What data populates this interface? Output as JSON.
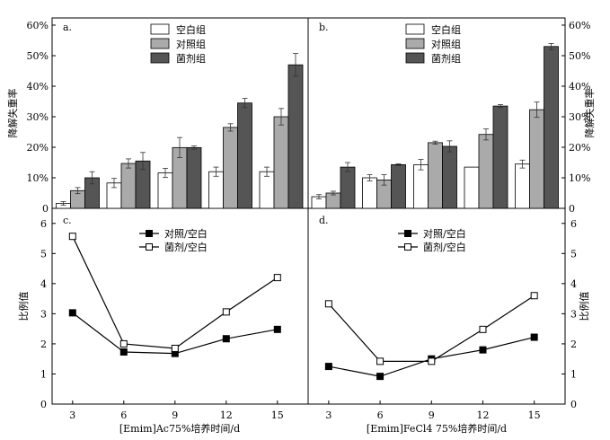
{
  "chart_data": [
    {
      "panel": "a",
      "type": "bar",
      "label": "a.",
      "categories": [
        "3",
        "6",
        "9",
        "12",
        "15"
      ],
      "series": [
        {
          "name": "空白组",
          "values": [
            1.6,
            8.3,
            11.6,
            12.0,
            12.0
          ],
          "errors": [
            0.6,
            1.5,
            1.5,
            1.5,
            1.5
          ],
          "color": "#ffffff"
        },
        {
          "name": "对照组",
          "values": [
            5.8,
            14.7,
            19.9,
            26.5,
            30.0
          ],
          "errors": [
            1.0,
            1.5,
            3.3,
            1.2,
            2.7
          ],
          "color": "#aaaaaa"
        },
        {
          "name": "菌剂组",
          "values": [
            10.0,
            15.5,
            19.9,
            34.5,
            47.0
          ],
          "errors": [
            2.0,
            2.8,
            0.5,
            1.5,
            3.7
          ],
          "color": "#555555"
        }
      ],
      "ylabel": "降解失重率",
      "yticks": [
        "0",
        "10%",
        "20%",
        "30%",
        "40%",
        "50%",
        "60%"
      ],
      "ylim": [
        0,
        60
      ]
    },
    {
      "panel": "b",
      "type": "bar",
      "label": "b.",
      "categories": [
        "3",
        "6",
        "9",
        "12",
        "15"
      ],
      "series": [
        {
          "name": "空白组",
          "values": [
            3.8,
            10.0,
            14.3,
            13.5,
            14.5
          ],
          "errors": [
            0.7,
            1.0,
            1.7,
            0,
            1.3
          ],
          "color": "#ffffff"
        },
        {
          "name": "对照组",
          "values": [
            5.0,
            9.3,
            21.5,
            24.2,
            32.3
          ],
          "errors": [
            0.6,
            1.7,
            0.5,
            1.8,
            2.5
          ],
          "color": "#aaaaaa"
        },
        {
          "name": "菌剂组",
          "values": [
            13.5,
            14.3,
            20.3,
            33.5,
            53.0
          ],
          "errors": [
            1.5,
            0.3,
            1.8,
            0.5,
            1.0
          ],
          "color": "#555555"
        }
      ],
      "ylabel": "降解失重率",
      "yticks": [
        "0",
        "10%",
        "20%",
        "30%",
        "40%",
        "50%",
        "60%"
      ],
      "ylim": [
        0,
        60
      ]
    },
    {
      "panel": "c",
      "type": "line",
      "label": "c.",
      "x": [
        3,
        6,
        9,
        12,
        15
      ],
      "xticks": [
        "3",
        "6",
        "9",
        "12",
        "15"
      ],
      "series": [
        {
          "name": "对照/空白",
          "values": [
            3.03,
            1.73,
            1.68,
            2.17,
            2.48
          ],
          "marker": "filled-square"
        },
        {
          "name": "菌剂/空白",
          "values": [
            5.57,
            2.0,
            1.85,
            3.06,
            4.2
          ],
          "marker": "open-square"
        }
      ],
      "xlabel": "[Emim]Ac75%培养时间/d",
      "ylabel": "比例值",
      "yticks": [
        "0",
        "1",
        "2",
        "3",
        "4",
        "5",
        "6"
      ],
      "ylim": [
        0,
        6.5
      ],
      "xlim": [
        1.8,
        16.8
      ]
    },
    {
      "panel": "d",
      "type": "line",
      "label": "d.",
      "x": [
        3,
        6,
        9,
        12,
        15
      ],
      "xticks": [
        "3",
        "6",
        "9",
        "12",
        "15"
      ],
      "series": [
        {
          "name": "对照/空白",
          "values": [
            1.25,
            0.92,
            1.5,
            1.8,
            2.22
          ],
          "marker": "filled-square"
        },
        {
          "name": "菌剂/空白",
          "values": [
            3.33,
            1.42,
            1.42,
            2.48,
            3.6
          ],
          "marker": "open-square"
        }
      ],
      "xlabel": "[Emim]FeCl4 75%培养时间/d",
      "ylabel": "比例值",
      "yticks": [
        "0",
        "1",
        "2",
        "3",
        "4",
        "5",
        "6"
      ],
      "ylim": [
        0,
        6.5
      ],
      "xlim": [
        1.8,
        16.8
      ]
    }
  ]
}
